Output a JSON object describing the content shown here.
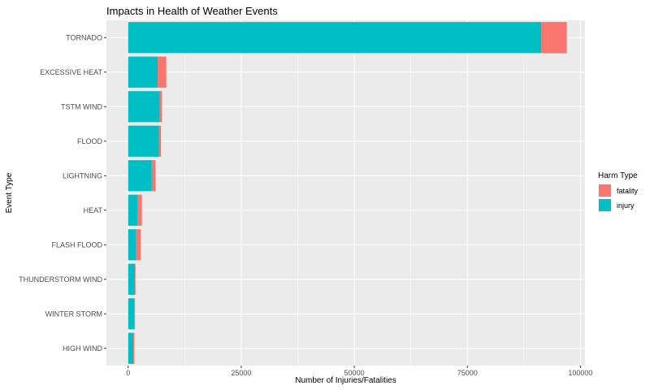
{
  "chart_data": {
    "type": "bar",
    "orientation": "horizontal",
    "stacked": true,
    "title": "Impacts in Health of Weather Events",
    "xlabel": "Number of Injuries/Fatalities",
    "ylabel": "Event Type",
    "xlim": [
      -4800,
      101000
    ],
    "x_ticks": [
      0,
      25000,
      50000,
      75000,
      100000
    ],
    "x_tick_labels": [
      "0",
      "25000",
      "50000",
      "75000",
      "100000"
    ],
    "categories": [
      "TORNADO",
      "EXCESSIVE HEAT",
      "TSTM WIND",
      "FLOOD",
      "LIGHTNING",
      "HEAT",
      "FLASH FLOOD",
      "THUNDERSTORM WIND",
      "WINTER STORM",
      "HIGH WIND"
    ],
    "series": [
      {
        "name": "injury",
        "color": "#00BFC4",
        "values": [
          91346,
          6525,
          6957,
          6789,
          5230,
          2100,
          1777,
          1488,
          1321,
          1137
        ]
      },
      {
        "name": "fatality",
        "color": "#F8766D",
        "values": [
          5633,
          1903,
          504,
          470,
          816,
          937,
          978,
          133,
          206,
          248
        ]
      }
    ],
    "legend": {
      "title": "Harm Type",
      "position": "right",
      "entries": [
        {
          "label": "fatality",
          "color": "#F8766D"
        },
        {
          "label": "injury",
          "color": "#00BFC4"
        }
      ]
    },
    "grid": true,
    "panel_background": "#EBEBEB",
    "grid_color": "#FFFFFF"
  }
}
